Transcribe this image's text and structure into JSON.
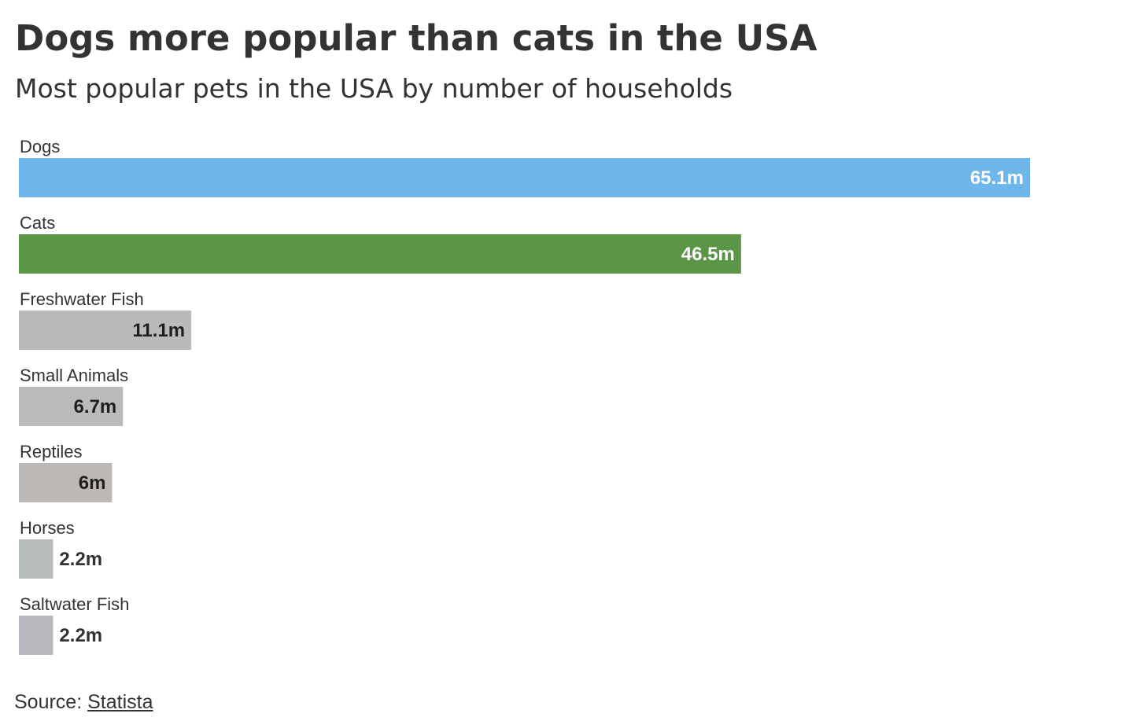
{
  "chart_data": {
    "type": "bar",
    "orientation": "horizontal",
    "title": "Dogs more popular than cats in the USA",
    "subtitle": "Most popular pets in the USA by number of households",
    "categories": [
      "Dogs",
      "Cats",
      "Freshwater Fish",
      "Small Animals",
      "Reptiles",
      "Horses",
      "Saltwater Fish"
    ],
    "values": [
      65.1,
      46.5,
      11.1,
      6.7,
      6,
      2.2,
      2.2
    ],
    "value_labels": [
      "65.1m",
      "46.5m",
      "11.1m",
      "6.7m",
      "6m",
      "2.2m",
      "2.2m"
    ],
    "colors": [
      "#6fb6ea",
      "#5b9548",
      "#bbb9bb",
      "#bbbcba",
      "#bcb8b5",
      "#b7bcbc",
      "#b9b8be"
    ],
    "xlim": [
      0,
      65.1
    ],
    "grid": false,
    "legend": "none"
  },
  "source": {
    "prefix": "Source: ",
    "link_text": "Statista"
  }
}
